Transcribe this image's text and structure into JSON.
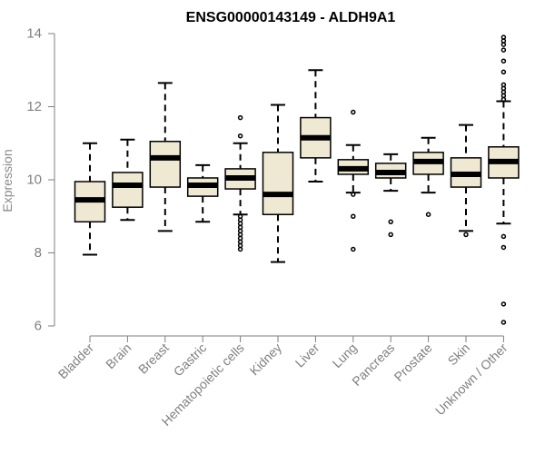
{
  "chart_data": {
    "type": "box",
    "title": "ENSG00000143149 - ALDH9A1",
    "xlabel": "",
    "ylabel": "Expression",
    "ylim": [
      6,
      14
    ],
    "yticks": [
      6,
      8,
      10,
      12,
      14
    ],
    "grid": false,
    "box_fill": "#efe9d3",
    "categories": [
      "Bladder",
      "Brain",
      "Breast",
      "Gastric",
      "Hematopoietic cells",
      "Kidney",
      "Liver",
      "Lung",
      "Pancreas",
      "Prostate",
      "Skin",
      "Unknown / Other"
    ],
    "boxes": [
      {
        "label": "Bladder",
        "whisker_low": 7.95,
        "q1": 8.85,
        "median": 9.45,
        "q3": 9.95,
        "whisker_high": 11.0,
        "outliers": []
      },
      {
        "label": "Brain",
        "whisker_low": 8.9,
        "q1": 9.25,
        "median": 9.85,
        "q3": 10.2,
        "whisker_high": 11.1,
        "outliers": []
      },
      {
        "label": "Breast",
        "whisker_low": 8.6,
        "q1": 9.8,
        "median": 10.6,
        "q3": 11.05,
        "whisker_high": 12.65,
        "outliers": []
      },
      {
        "label": "Gastric",
        "whisker_low": 8.85,
        "q1": 9.55,
        "median": 9.85,
        "q3": 10.05,
        "whisker_high": 10.4,
        "outliers": []
      },
      {
        "label": "Hematopoietic cells",
        "whisker_low": 9.05,
        "q1": 9.75,
        "median": 10.05,
        "q3": 10.3,
        "whisker_high": 11.0,
        "outliers": [
          11.7,
          11.2,
          9.0,
          8.9,
          8.8,
          8.7,
          8.6,
          8.5,
          8.4,
          8.3,
          8.2,
          8.1
        ]
      },
      {
        "label": "Kidney",
        "whisker_low": 7.75,
        "q1": 9.05,
        "median": 9.6,
        "q3": 10.75,
        "whisker_high": 12.05,
        "outliers": []
      },
      {
        "label": "Liver",
        "whisker_low": 9.95,
        "q1": 10.6,
        "median": 11.15,
        "q3": 11.7,
        "whisker_high": 13.0,
        "outliers": []
      },
      {
        "label": "Lung",
        "whisker_low": 9.65,
        "q1": 10.15,
        "median": 10.3,
        "q3": 10.55,
        "whisker_high": 10.95,
        "outliers": [
          11.85,
          9.6,
          9.0,
          8.1
        ]
      },
      {
        "label": "Pancreas",
        "whisker_low": 9.7,
        "q1": 10.05,
        "median": 10.2,
        "q3": 10.45,
        "whisker_high": 10.7,
        "outliers": [
          8.85,
          8.5
        ]
      },
      {
        "label": "Prostate",
        "whisker_low": 9.65,
        "q1": 10.15,
        "median": 10.5,
        "q3": 10.75,
        "whisker_high": 11.15,
        "outliers": [
          9.05
        ]
      },
      {
        "label": "Skin",
        "whisker_low": 8.6,
        "q1": 9.8,
        "median": 10.15,
        "q3": 10.6,
        "whisker_high": 11.5,
        "outliers": [
          8.5
        ]
      },
      {
        "label": "Unknown / Other",
        "whisker_low": 8.8,
        "q1": 10.05,
        "median": 10.5,
        "q3": 10.9,
        "whisker_high": 12.15,
        "outliers": [
          13.9,
          13.8,
          13.7,
          13.55,
          13.25,
          12.95,
          12.6,
          12.5,
          12.4,
          12.3,
          12.2,
          8.45,
          8.15,
          6.6,
          6.1
        ]
      }
    ]
  }
}
